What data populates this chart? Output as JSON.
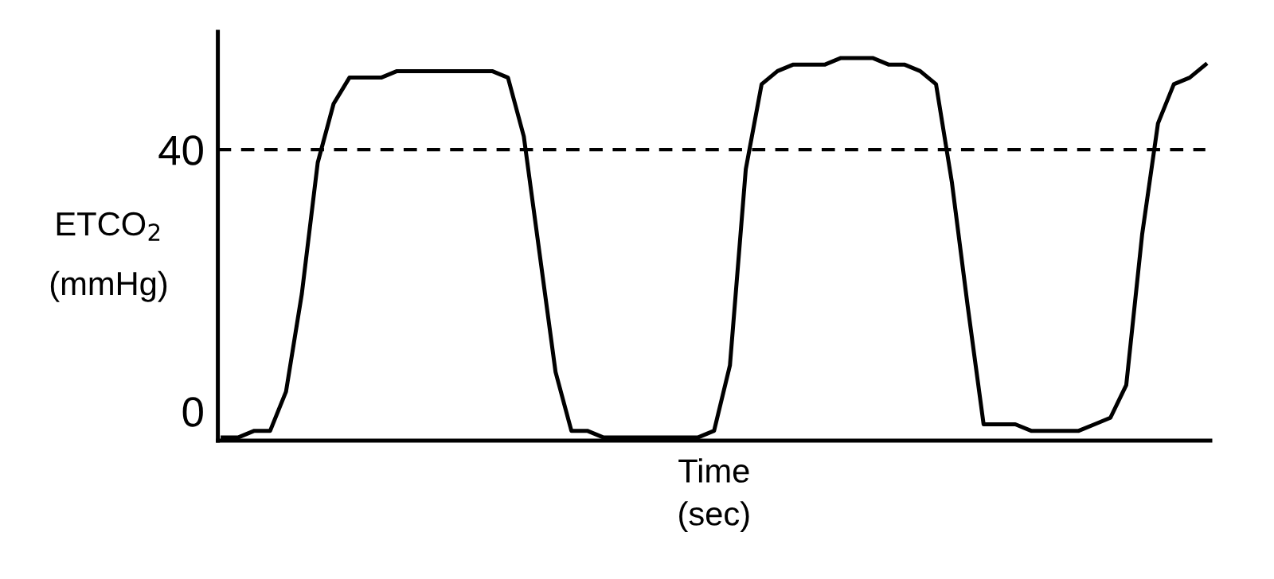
{
  "chart_data": {
    "type": "line",
    "xlabel": "Time\n(sec)",
    "ylabel": "ETCO$_{2}$\n(mmHg)",
    "categories": [
      null,
      null,
      null,
      null,
      null,
      null,
      null,
      null,
      null,
      null,
      null,
      null,
      null,
      null,
      null,
      null,
      null,
      null,
      null,
      null,
      null,
      null,
      null,
      null,
      null,
      null,
      null,
      null,
      null,
      null,
      null,
      null,
      null,
      null,
      null,
      null,
      null,
      null,
      null,
      null,
      null,
      null,
      null,
      null,
      null,
      null,
      null,
      null,
      null,
      null,
      null,
      null,
      null,
      null,
      null,
      null,
      null,
      null,
      null,
      null,
      null,
      null,
      null
    ],
    "series": [
      {
        "color": "#000000",
        "values": [
          -4,
          -4,
          -3,
          -3,
          3,
          18,
          38,
          47,
          51,
          51,
          51,
          52,
          52,
          52,
          52,
          52,
          52,
          52,
          51,
          42,
          24,
          6,
          -3,
          -3,
          -4,
          -4,
          -4,
          -4,
          -4,
          -4,
          -4,
          -3,
          7,
          37,
          50,
          52,
          53,
          53,
          53,
          54,
          54,
          54,
          53,
          53,
          52,
          50,
          35,
          16,
          -2,
          -2,
          -2,
          -3,
          -3,
          -3,
          -3,
          -2,
          -1,
          4,
          27,
          44,
          50,
          51,
          53
        ]
      }
    ],
    "ylim": [
      -4.5,
      58
    ],
    "yticks": [
      0,
      40
    ],
    "ref_lines": [
      {
        "axis": "y",
        "value": 40,
        "color": "#000000",
        "line_style": "dashed"
      }
    ],
    "tick_labels": "y",
    "grid": false,
    "legend": false,
    "marker": "none",
    "line_style": "solid"
  }
}
